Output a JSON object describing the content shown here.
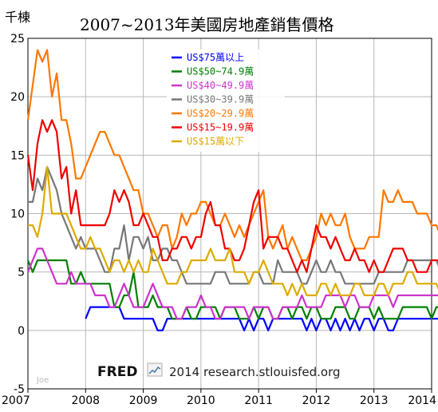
{
  "chart_data": {
    "type": "line",
    "title": "2007~2013年美國房地產銷售價格",
    "ylabel": "千棟",
    "ylim": [
      -5,
      25
    ],
    "yticks": [
      "25",
      "20",
      "15",
      "10",
      "5",
      "0",
      "-5"
    ],
    "xlim": [
      2007,
      2014
    ],
    "xticks": [
      "2007",
      "2008",
      "2009",
      "2010",
      "2011",
      "2012",
      "2013",
      "2014"
    ],
    "grid": true,
    "legend_position": "top-center",
    "footer": {
      "brand": "FRED",
      "icon": "line-chart-icon",
      "text": "2014 research.stlouisfed.org"
    },
    "signature": "Joe",
    "series": [
      {
        "name": "US$75萬以上",
        "color": "#0000ff",
        "x_start": 2008.0,
        "values": [
          1,
          2,
          2,
          2,
          2,
          2,
          2,
          2,
          1,
          1,
          1,
          1,
          1,
          1,
          1,
          0,
          0,
          1,
          1,
          1,
          1,
          1,
          1,
          1,
          1,
          1,
          1,
          1,
          1,
          1,
          1,
          1,
          1,
          0,
          1,
          0,
          1,
          1,
          0,
          1,
          1,
          1,
          1,
          1,
          1,
          1,
          0,
          1,
          0,
          1,
          1,
          0,
          1,
          0,
          1,
          0,
          1,
          0,
          1,
          1,
          0,
          1,
          1,
          0,
          0,
          1,
          1,
          1,
          1,
          1,
          1,
          1,
          1,
          1,
          1,
          1,
          1,
          1,
          1,
          1,
          1,
          1,
          1,
          1,
          2,
          1,
          1,
          2,
          1,
          1,
          2,
          2
        ]
      },
      {
        "name": "US$50~74.9萬",
        "color": "#008000",
        "x_start": 2007.0,
        "values": [
          6,
          5,
          6,
          6,
          6,
          6,
          6,
          6,
          6,
          4,
          4,
          5,
          4,
          4,
          4,
          4,
          4,
          4,
          2,
          2,
          3,
          3,
          5,
          2,
          2,
          2,
          3,
          2,
          2,
          2,
          1,
          1,
          1,
          2,
          1,
          1,
          2,
          2,
          2,
          2,
          1,
          2,
          2,
          2,
          1,
          1,
          1,
          2,
          1,
          2,
          2,
          1,
          1,
          2,
          2,
          1,
          2,
          2,
          1,
          2,
          2,
          1,
          1,
          1,
          2,
          2,
          2,
          1,
          1,
          2,
          2,
          2,
          1,
          2,
          1,
          1,
          1,
          1,
          2,
          2,
          2,
          2,
          2,
          2,
          1,
          2,
          2,
          2,
          2,
          3,
          3,
          2,
          2,
          3,
          4,
          3,
          3,
          4,
          2,
          2,
          1,
          2
        ]
      },
      {
        "name": "US$40~49.9萬",
        "color": "#cc33cc",
        "x_start": 2007.0,
        "values": [
          5,
          6,
          7,
          7,
          6,
          5,
          4,
          4,
          4,
          5,
          4,
          4,
          4,
          4,
          3,
          3,
          3,
          2,
          2,
          3,
          4,
          3,
          2,
          2,
          2,
          3,
          4,
          3,
          2,
          2,
          2,
          1,
          1,
          2,
          2,
          2,
          3,
          2,
          2,
          1,
          1,
          2,
          2,
          2,
          2,
          2,
          1,
          2,
          2,
          2,
          2,
          1,
          1,
          2,
          2,
          2,
          2,
          3,
          2,
          2,
          2,
          2,
          3,
          3,
          3,
          3,
          2,
          3,
          3,
          2,
          2,
          2,
          3,
          3,
          3,
          3,
          2,
          3,
          3,
          3,
          3,
          3,
          3,
          3,
          3,
          3,
          3,
          3,
          3,
          3,
          3,
          3,
          3,
          3,
          3,
          4,
          3,
          3,
          3,
          3,
          3,
          4
        ]
      },
      {
        "name": "US$30~39.9萬",
        "color": "#777777",
        "x_start": 2007.0,
        "values": [
          11,
          11,
          13,
          12,
          14,
          13,
          12,
          10,
          9,
          8,
          7,
          8,
          7,
          7,
          7,
          6,
          5,
          5,
          7,
          7,
          9,
          6,
          8,
          8,
          7,
          8,
          6,
          6,
          7,
          7,
          6,
          6,
          5,
          4,
          4,
          4,
          4,
          4,
          4,
          5,
          5,
          5,
          4,
          4,
          4,
          4,
          4,
          5,
          5,
          4,
          4,
          4,
          6,
          5,
          5,
          5,
          5,
          4,
          4,
          5,
          6,
          5,
          5,
          6,
          5,
          5,
          4,
          4,
          4,
          4,
          4,
          4,
          4,
          5,
          5,
          5,
          5,
          5,
          5,
          6,
          6,
          6,
          6,
          6,
          6,
          6,
          5,
          6,
          6,
          7,
          8,
          9,
          9,
          8,
          5,
          5,
          6,
          7,
          7,
          7,
          7,
          7
        ]
      },
      {
        "name": "US$20~29.9萬",
        "color": "#ff7700",
        "x_start": 2007.0,
        "values": [
          18,
          21,
          24,
          23,
          24,
          20,
          22,
          18,
          18,
          16,
          13,
          13,
          14,
          15,
          16,
          17,
          17,
          16,
          15,
          15,
          14,
          13,
          12,
          12,
          10,
          10,
          9,
          8,
          9,
          9,
          7,
          8,
          10,
          9,
          10,
          10,
          11,
          11,
          10,
          9,
          9,
          10,
          9,
          8,
          9,
          8,
          9,
          10,
          11,
          12,
          8,
          7,
          8,
          9,
          7,
          8,
          7,
          6,
          6,
          7,
          8,
          10,
          9,
          10,
          9,
          9,
          10,
          8,
          7,
          7,
          7,
          8,
          8,
          8,
          12,
          11,
          11,
          12,
          11,
          11,
          11,
          10,
          10,
          10,
          9,
          9,
          8,
          10,
          11,
          12,
          14,
          14,
          14,
          15,
          15,
          10,
          10,
          10,
          10,
          10,
          12,
          10
        ]
      },
      {
        "name": "US$15~19.9萬",
        "color": "#ee0000",
        "x_start": 2007.0,
        "values": [
          15,
          12,
          16,
          18,
          17,
          18,
          17,
          13,
          14,
          10,
          12,
          9,
          9,
          9,
          9,
          9,
          9,
          10,
          12,
          11,
          12,
          11,
          9,
          9,
          10,
          9,
          8,
          8,
          6,
          6,
          7,
          7,
          8,
          8,
          7,
          8,
          8,
          10,
          11,
          9,
          9,
          7,
          7,
          6,
          6,
          7,
          9,
          11,
          12,
          7,
          8,
          8,
          8,
          7,
          7,
          6,
          5,
          6,
          5,
          7,
          9,
          8,
          8,
          7,
          8,
          7,
          6,
          6,
          7,
          6,
          6,
          5,
          6,
          5,
          5,
          6,
          7,
          7,
          7,
          6,
          6,
          5,
          5,
          5,
          6,
          6,
          6,
          5,
          6,
          6,
          7,
          7,
          7,
          6,
          7,
          7,
          7,
          7,
          7,
          7,
          9,
          7
        ]
      },
      {
        "name": "US$15萬以下",
        "color": "#ddaa00",
        "x_start": 2007.0,
        "values": [
          9,
          9,
          8,
          10,
          14,
          10,
          10,
          10,
          10,
          9,
          8,
          7,
          7,
          8,
          7,
          7,
          6,
          5,
          6,
          6,
          5,
          6,
          5,
          6,
          5,
          5,
          7,
          6,
          5,
          4,
          4,
          4,
          5,
          5,
          6,
          6,
          6,
          6,
          7,
          6,
          6,
          6,
          7,
          5,
          5,
          5,
          4,
          5,
          5,
          6,
          5,
          4,
          4,
          4,
          3,
          4,
          3,
          4,
          3,
          3,
          3,
          4,
          4,
          3,
          4,
          3,
          3,
          3,
          4,
          4,
          3,
          3,
          3,
          4,
          4,
          3,
          4,
          4,
          4,
          5,
          5,
          4,
          4,
          4,
          4,
          4,
          3,
          3,
          3,
          4,
          4,
          3,
          4,
          4,
          3,
          4,
          3,
          3,
          3,
          4,
          4,
          2
        ]
      }
    ]
  }
}
